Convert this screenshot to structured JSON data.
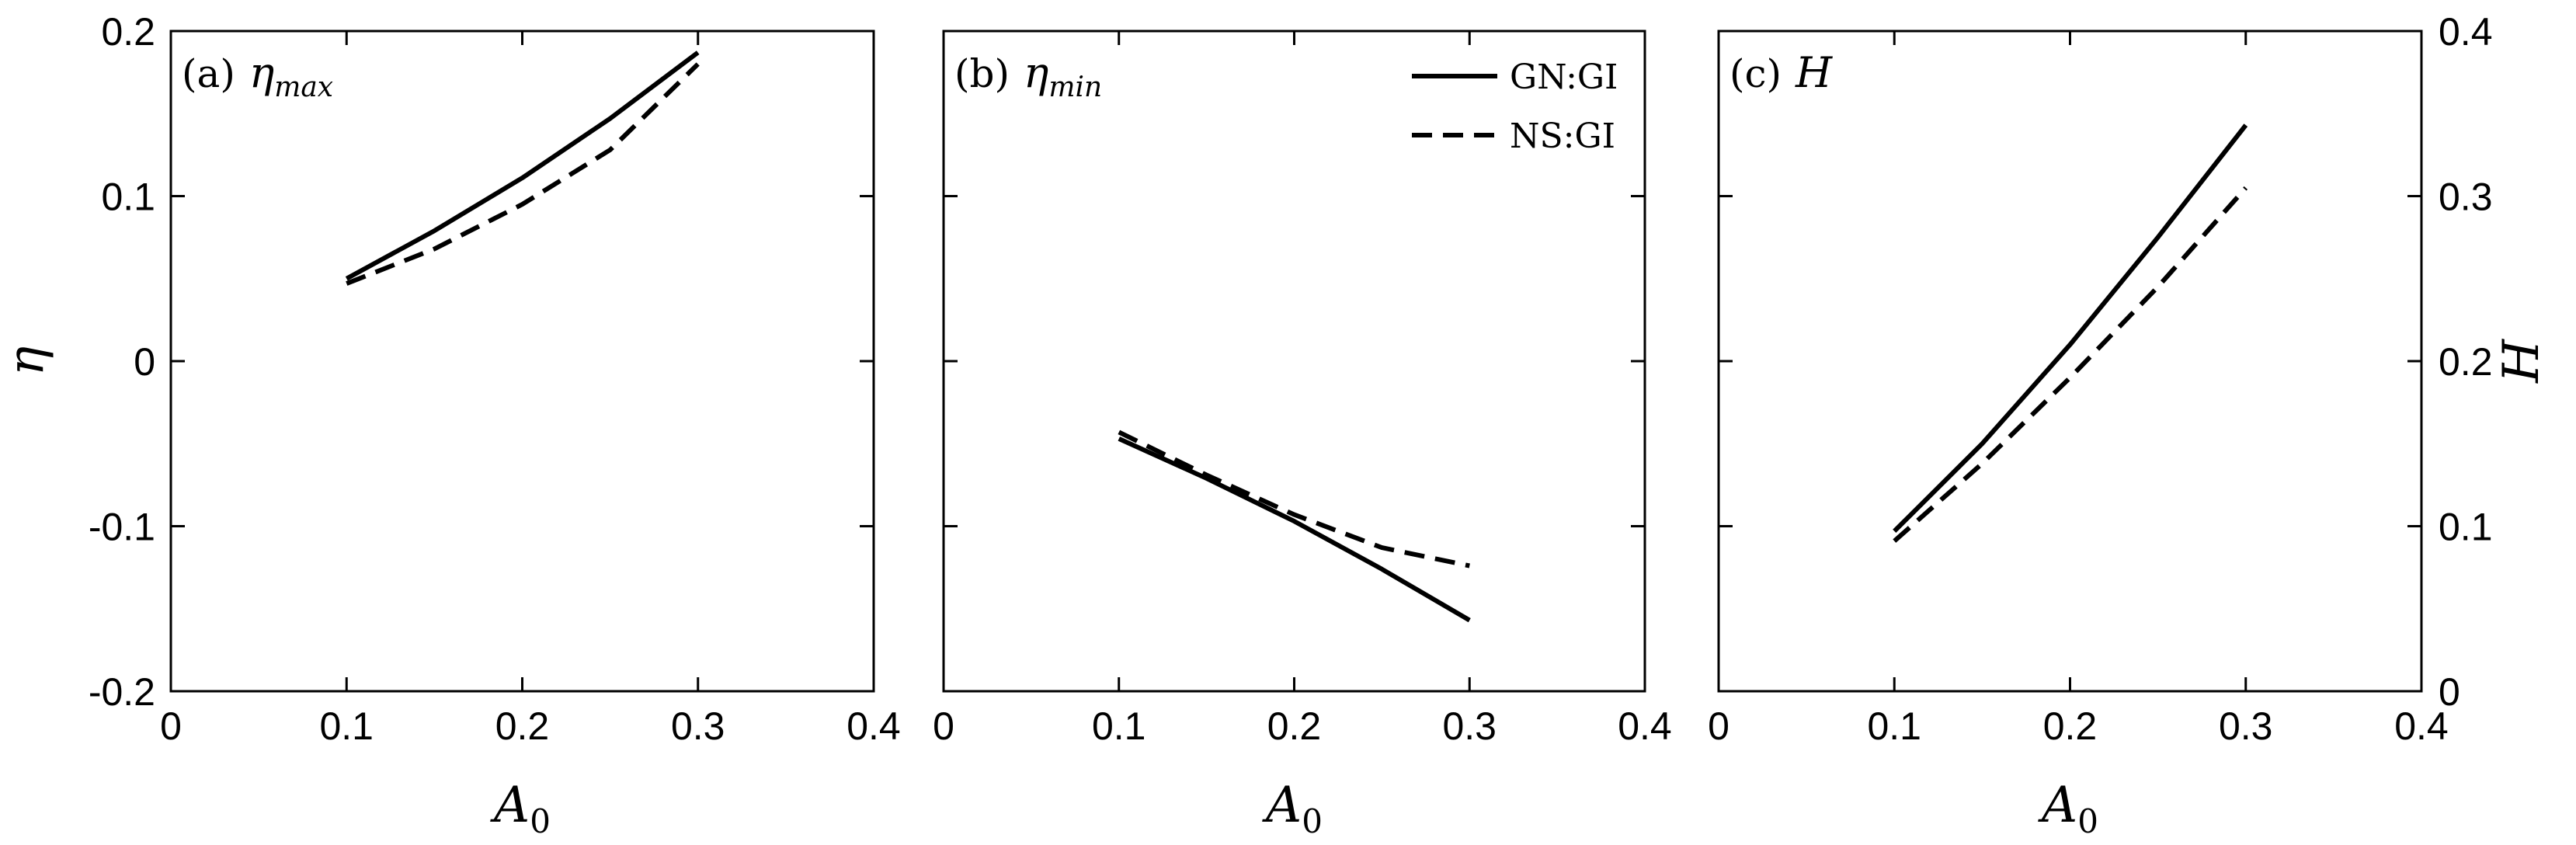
{
  "chart_data": [
    {
      "type": "line",
      "panel_label": "(a)",
      "panel_symbol": "η",
      "panel_subscript": "max",
      "xlabel": "A",
      "xlabel_sub": "0",
      "ylabel": "η",
      "xlim": [
        0,
        0.4
      ],
      "ylim": [
        -0.2,
        0.2
      ],
      "xticks": [
        "0",
        "0.1",
        "0.2",
        "0.3",
        "0.4"
      ],
      "yticks": [
        "-0.2",
        "-0.1",
        "0",
        "0.1",
        "0.2"
      ],
      "yaxis_side": "left",
      "series": [
        {
          "name": "GN:GI",
          "style": "solid",
          "x": [
            0.1,
            0.15,
            0.2,
            0.25,
            0.3
          ],
          "y": [
            0.05,
            0.079,
            0.111,
            0.147,
            0.187
          ]
        },
        {
          "name": "NS:GI",
          "style": "dashed",
          "x": [
            0.1,
            0.15,
            0.2,
            0.25,
            0.3
          ],
          "y": [
            0.047,
            0.068,
            0.095,
            0.128,
            0.18
          ]
        }
      ]
    },
    {
      "type": "line",
      "panel_label": "(b)",
      "panel_symbol": "η",
      "panel_subscript": "min",
      "xlabel": "A",
      "xlabel_sub": "0",
      "ylabel": "",
      "xlim": [
        0,
        0.4
      ],
      "ylim": [
        -0.2,
        0.2
      ],
      "xticks": [
        "0",
        "0.1",
        "0.2",
        "0.3",
        "0.4"
      ],
      "yticks": [],
      "yaxis_side": "none",
      "legend": {
        "position": "top-right",
        "entries": [
          "GN:GI",
          "NS:GI"
        ]
      },
      "series": [
        {
          "name": "GN:GI",
          "style": "solid",
          "x": [
            0.1,
            0.15,
            0.2,
            0.25,
            0.3
          ],
          "y": [
            -0.047,
            -0.071,
            -0.097,
            -0.126,
            -0.157
          ]
        },
        {
          "name": "NS:GI",
          "style": "dashed",
          "x": [
            0.1,
            0.15,
            0.2,
            0.25,
            0.3
          ],
          "y": [
            -0.043,
            -0.069,
            -0.093,
            -0.113,
            -0.124
          ]
        }
      ]
    },
    {
      "type": "line",
      "panel_label": "(c)",
      "panel_symbol": "H",
      "panel_subscript": "",
      "xlabel": "A",
      "xlabel_sub": "0",
      "ylabel": "H",
      "xlim": [
        0,
        0.4
      ],
      "ylim": [
        0,
        0.4
      ],
      "xticks": [
        "0",
        "0.1",
        "0.2",
        "0.3",
        "0.4"
      ],
      "yticks": [
        "0",
        "0.1",
        "0.2",
        "0.3",
        "0.4"
      ],
      "yaxis_side": "right",
      "series": [
        {
          "name": "GN:GI",
          "style": "solid",
          "x": [
            0.1,
            0.15,
            0.2,
            0.25,
            0.3
          ],
          "y": [
            0.097,
            0.15,
            0.21,
            0.275,
            0.343
          ]
        },
        {
          "name": "NS:GI",
          "style": "dashed",
          "x": [
            0.1,
            0.15,
            0.2,
            0.25,
            0.3
          ],
          "y": [
            0.091,
            0.138,
            0.19,
            0.245,
            0.305
          ]
        }
      ]
    }
  ]
}
